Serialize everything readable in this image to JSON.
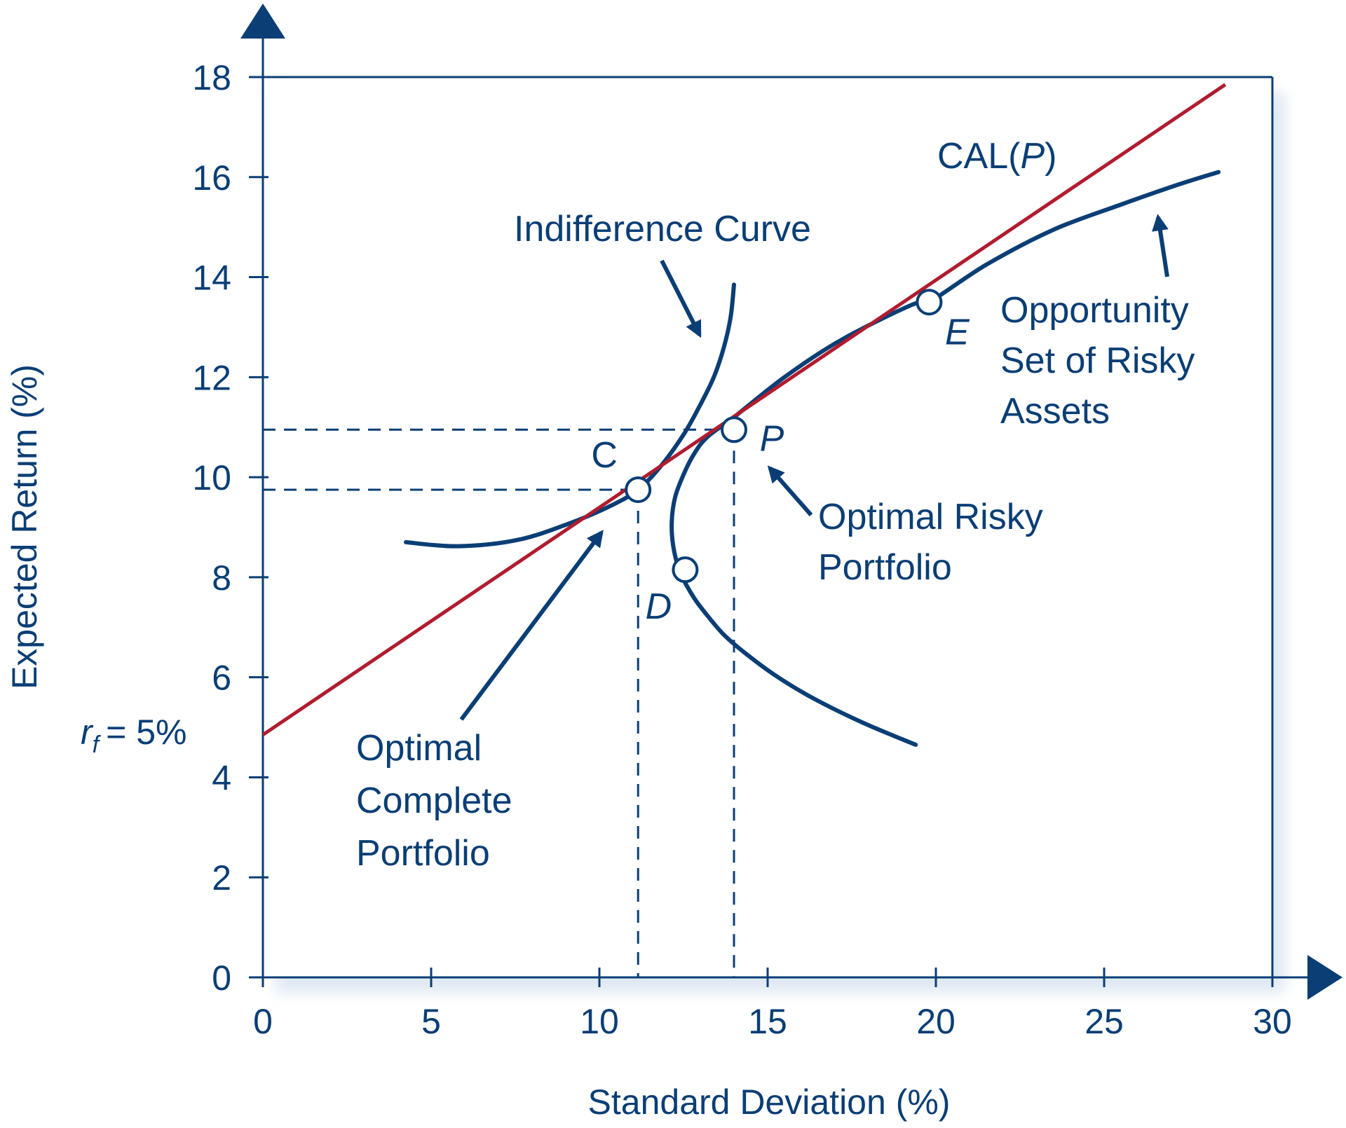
{
  "chart_data": {
    "type": "line",
    "xlabel": "Standard Deviation (%)",
    "ylabel": "Expected Return (%)",
    "xlim": [
      0,
      30
    ],
    "ylim": [
      0,
      18
    ],
    "x_ticks": [
      {
        "value": 0,
        "label": "0"
      },
      {
        "value": 5,
        "label": "5"
      },
      {
        "value": 10,
        "label": "10"
      },
      {
        "value": 15,
        "label": "15"
      },
      {
        "value": 20,
        "label": "20"
      },
      {
        "value": 25,
        "label": "25"
      },
      {
        "value": 30,
        "label": "30"
      }
    ],
    "y_ticks": [
      {
        "value": 0,
        "label": "0"
      },
      {
        "value": 2,
        "label": "2"
      },
      {
        "value": 4,
        "label": "4"
      },
      {
        "value": 6,
        "label": "6"
      },
      {
        "value": 8,
        "label": "8"
      },
      {
        "value": 10,
        "label": "10"
      },
      {
        "value": 12,
        "label": "12"
      },
      {
        "value": 14,
        "label": "14"
      },
      {
        "value": 16,
        "label": "16"
      },
      {
        "value": 18,
        "label": "18"
      }
    ],
    "rf_label": "= 5%",
    "rf_symbol": "r",
    "rf_subscript": "f",
    "rf_value": 5,
    "series": [
      {
        "key": "cal",
        "name": "CAL(P)",
        "name_main": "CAL(",
        "name_italic": "P",
        "name_close": ")",
        "color": "#b01c2e",
        "x": [
          0,
          28.6
        ],
        "y": [
          4.85,
          17.85
        ]
      },
      {
        "key": "opportunity",
        "name": "Opportunity Set of Risky Assets",
        "name_lines": [
          "Opportunity",
          "Set of Risky",
          "Assets"
        ],
        "color": "#0a3e75",
        "x": [
          19.4,
          17.8,
          16.3,
          15.2,
          14.3,
          13.7,
          13.25,
          12.8,
          12.4,
          12.2,
          12.15,
          12.25,
          12.5,
          12.8,
          13.2,
          14.0,
          15.5,
          17.2,
          19.3
        ],
        "y": [
          4.65,
          5.1,
          5.6,
          6.05,
          6.5,
          6.85,
          7.2,
          7.6,
          8.1,
          8.6,
          9.1,
          9.6,
          10.05,
          10.45,
          10.8,
          11.2,
          12.0,
          12.75,
          13.45
        ],
        "x_upper": [
          19.8,
          21.5,
          23.5,
          25.5,
          27.2,
          28.4
        ],
        "y_upper": [
          13.5,
          14.25,
          14.95,
          15.45,
          15.85,
          16.1
        ]
      },
      {
        "key": "indifference",
        "name": "Indifference Curve",
        "color": "#0a3e75",
        "x": [
          4.25,
          5.8,
          7.6,
          9.2,
          10.4,
          11.15,
          11.8,
          12.5,
          13.0,
          13.4,
          13.7,
          13.9,
          14.0
        ],
        "y": [
          8.7,
          8.62,
          8.75,
          9.1,
          9.45,
          9.75,
          10.2,
          10.85,
          11.45,
          12.0,
          12.6,
          13.2,
          13.85
        ]
      }
    ],
    "points": [
      {
        "key": "C",
        "label": "C",
        "x": 11.15,
        "y": 9.75
      },
      {
        "key": "P",
        "label": "P",
        "x": 14.0,
        "y": 10.95
      },
      {
        "key": "D",
        "label": "D",
        "x": 12.55,
        "y": 8.15
      },
      {
        "key": "E",
        "label": "E",
        "x": 19.8,
        "y": 13.5
      }
    ],
    "annotations": {
      "indifference_label": "Indifference Curve",
      "optimal_risky_lines": [
        "Optimal Risky",
        "Portfolio"
      ],
      "optimal_complete_lines": [
        "Optimal",
        "Complete",
        "Portfolio"
      ]
    },
    "grid": false,
    "colors": {
      "axis": "#0a3e75",
      "shadow": "#dfe8f2",
      "cal": "#b01c2e",
      "curve": "#0a3e75"
    }
  }
}
